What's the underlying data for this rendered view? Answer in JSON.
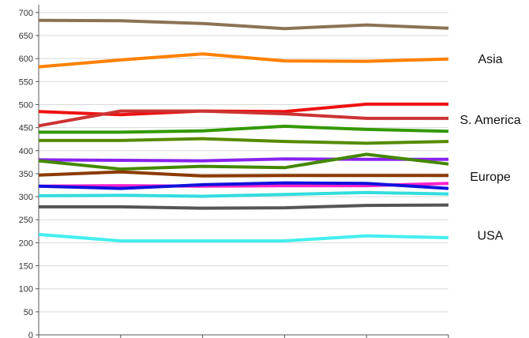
{
  "chart_data": {
    "type": "line",
    "title": "",
    "xlabel": "",
    "ylabel": "",
    "ylim": [
      0,
      710
    ],
    "y_ticks": [
      0,
      50,
      100,
      150,
      200,
      250,
      300,
      350,
      400,
      450,
      500,
      550,
      600,
      650,
      700
    ],
    "x": [
      1,
      2,
      3,
      4,
      5,
      6
    ],
    "x_tick_labels": [
      "",
      "",
      "",
      "",
      "",
      ""
    ],
    "grid": "horizontal",
    "legend": "none",
    "region_labels": [
      {
        "text": "Asia",
        "value": 600
      },
      {
        "text": "S. America",
        "value": 468
      },
      {
        "text": "Europe",
        "value": 345
      },
      {
        "text": "USA",
        "value": 217
      }
    ],
    "series": [
      {
        "color": "#8b7355",
        "values": [
          683,
          682,
          676,
          665,
          673,
          666
        ]
      },
      {
        "color": "#ff8000",
        "values": [
          582,
          597,
          610,
          595,
          594,
          599
        ]
      },
      {
        "color": "#ee1111",
        "values": [
          485,
          478,
          486,
          485,
          501,
          501
        ]
      },
      {
        "color": "#cc3333",
        "values": [
          454,
          486,
          486,
          480,
          470,
          470
        ]
      },
      {
        "color": "#339900",
        "values": [
          440,
          440,
          443,
          453,
          446,
          442
        ]
      },
      {
        "color": "#558b00",
        "values": [
          422,
          422,
          426,
          420,
          416,
          420
        ]
      },
      {
        "color": "#8822ee",
        "values": [
          380,
          379,
          378,
          382,
          381,
          381
        ]
      },
      {
        "color": "#448800",
        "values": [
          378,
          360,
          366,
          363,
          392,
          371
        ]
      },
      {
        "color": "#8b3a00",
        "values": [
          347,
          354,
          345,
          346,
          346,
          346
        ]
      },
      {
        "color": "#ff22cc",
        "values": [
          323,
          324,
          323,
          324,
          324,
          329
        ]
      },
      {
        "color": "#1111dd",
        "values": [
          323,
          318,
          326,
          330,
          329,
          318
        ]
      },
      {
        "color": "#33dddd",
        "values": [
          302,
          303,
          301,
          305,
          309,
          306
        ]
      },
      {
        "color": "#555555",
        "values": [
          278,
          278,
          275,
          276,
          281,
          282
        ]
      },
      {
        "color": "#44eeee",
        "values": [
          218,
          204,
          204,
          204,
          215,
          211
        ]
      }
    ]
  }
}
